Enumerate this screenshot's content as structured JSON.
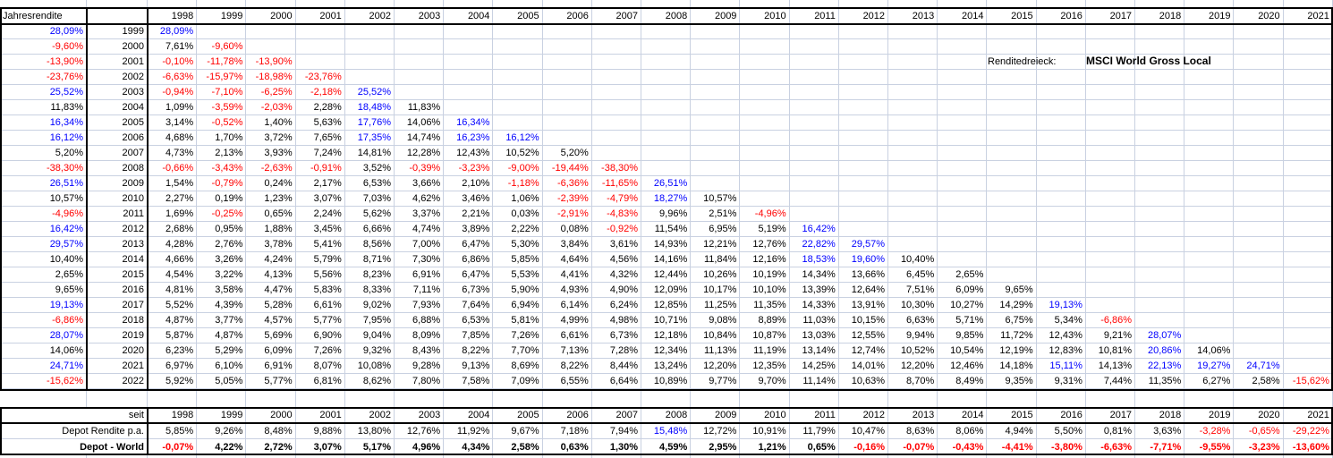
{
  "meta": {
    "colors": {
      "grid_line": "#c9d1e1",
      "negative_text": "#ff0000",
      "high_text": "#0000ff",
      "text": "#000000",
      "background": "#ffffff",
      "border": "#000000"
    },
    "value_color_rules": {
      "blue_min_percent": 15,
      "red_below_percent": 0
    }
  },
  "title": {
    "label": "Renditedreieck:",
    "value": "MSCI World Gross Local"
  },
  "header": {
    "corner_label": "Jahresrendite",
    "years": [
      "1998",
      "1999",
      "2000",
      "2001",
      "2002",
      "2003",
      "2004",
      "2005",
      "2006",
      "2007",
      "2008",
      "2009",
      "2010",
      "2011",
      "2012",
      "2013",
      "2014",
      "2015",
      "2016",
      "2017",
      "2018",
      "2019",
      "2020",
      "2021"
    ]
  },
  "triangle": {
    "rows": [
      {
        "year": "1999",
        "annual": "28,09%",
        "values": [
          "28,09%"
        ]
      },
      {
        "year": "2000",
        "annual": "-9,60%",
        "values": [
          "7,61%",
          "-9,60%"
        ]
      },
      {
        "year": "2001",
        "annual": "-13,90%",
        "values": [
          "-0,10%",
          "-11,78%",
          "-13,90%"
        ]
      },
      {
        "year": "2002",
        "annual": "-23,76%",
        "values": [
          "-6,63%",
          "-15,97%",
          "-18,98%",
          "-23,76%"
        ]
      },
      {
        "year": "2003",
        "annual": "25,52%",
        "values": [
          "-0,94%",
          "-7,10%",
          "-6,25%",
          "-2,18%",
          "25,52%"
        ]
      },
      {
        "year": "2004",
        "annual": "11,83%",
        "values": [
          "1,09%",
          "-3,59%",
          "-2,03%",
          "2,28%",
          "18,48%",
          "11,83%"
        ]
      },
      {
        "year": "2005",
        "annual": "16,34%",
        "values": [
          "3,14%",
          "-0,52%",
          "1,40%",
          "5,63%",
          "17,76%",
          "14,06%",
          "16,34%"
        ]
      },
      {
        "year": "2006",
        "annual": "16,12%",
        "values": [
          "4,68%",
          "1,70%",
          "3,72%",
          "7,65%",
          "17,35%",
          "14,74%",
          "16,23%",
          "16,12%"
        ]
      },
      {
        "year": "2007",
        "annual": "5,20%",
        "values": [
          "4,73%",
          "2,13%",
          "3,93%",
          "7,24%",
          "14,81%",
          "12,28%",
          "12,43%",
          "10,52%",
          "5,20%"
        ]
      },
      {
        "year": "2008",
        "annual": "-38,30%",
        "values": [
          "-0,66%",
          "-3,43%",
          "-2,63%",
          "-0,91%",
          "3,52%",
          "-0,39%",
          "-3,23%",
          "-9,00%",
          "-19,44%",
          "-38,30%"
        ]
      },
      {
        "year": "2009",
        "annual": "26,51%",
        "values": [
          "1,54%",
          "-0,79%",
          "0,24%",
          "2,17%",
          "6,53%",
          "3,66%",
          "2,10%",
          "-1,18%",
          "-6,36%",
          "-11,65%",
          "26,51%"
        ]
      },
      {
        "year": "2010",
        "annual": "10,57%",
        "values": [
          "2,27%",
          "0,19%",
          "1,23%",
          "3,07%",
          "7,03%",
          "4,62%",
          "3,46%",
          "1,06%",
          "-2,39%",
          "-4,79%",
          "18,27%",
          "10,57%"
        ]
      },
      {
        "year": "2011",
        "annual": "-4,96%",
        "values": [
          "1,69%",
          "-0,25%",
          "0,65%",
          "2,24%",
          "5,62%",
          "3,37%",
          "2,21%",
          "0,03%",
          "-2,91%",
          "-4,83%",
          "9,96%",
          "2,51%",
          "-4,96%"
        ]
      },
      {
        "year": "2012",
        "annual": "16,42%",
        "values": [
          "2,68%",
          "0,95%",
          "1,88%",
          "3,45%",
          "6,66%",
          "4,74%",
          "3,89%",
          "2,22%",
          "0,08%",
          "-0,92%",
          "11,54%",
          "6,95%",
          "5,19%",
          "16,42%"
        ]
      },
      {
        "year": "2013",
        "annual": "29,57%",
        "values": [
          "4,28%",
          "2,76%",
          "3,78%",
          "5,41%",
          "8,56%",
          "7,00%",
          "6,47%",
          "5,30%",
          "3,84%",
          "3,61%",
          "14,93%",
          "12,21%",
          "12,76%",
          "22,82%",
          "29,57%"
        ]
      },
      {
        "year": "2014",
        "annual": "10,40%",
        "values": [
          "4,66%",
          "3,26%",
          "4,24%",
          "5,79%",
          "8,71%",
          "7,30%",
          "6,86%",
          "5,85%",
          "4,64%",
          "4,56%",
          "14,16%",
          "11,84%",
          "12,16%",
          "18,53%",
          "19,60%",
          "10,40%"
        ]
      },
      {
        "year": "2015",
        "annual": "2,65%",
        "values": [
          "4,54%",
          "3,22%",
          "4,13%",
          "5,56%",
          "8,23%",
          "6,91%",
          "6,47%",
          "5,53%",
          "4,41%",
          "4,32%",
          "12,44%",
          "10,26%",
          "10,19%",
          "14,34%",
          "13,66%",
          "6,45%",
          "2,65%"
        ]
      },
      {
        "year": "2016",
        "annual": "9,65%",
        "values": [
          "4,81%",
          "3,58%",
          "4,47%",
          "5,83%",
          "8,33%",
          "7,11%",
          "6,73%",
          "5,90%",
          "4,93%",
          "4,90%",
          "12,09%",
          "10,17%",
          "10,10%",
          "13,39%",
          "12,64%",
          "7,51%",
          "6,09%",
          "9,65%"
        ]
      },
      {
        "year": "2017",
        "annual": "19,13%",
        "values": [
          "5,52%",
          "4,39%",
          "5,28%",
          "6,61%",
          "9,02%",
          "7,93%",
          "7,64%",
          "6,94%",
          "6,14%",
          "6,24%",
          "12,85%",
          "11,25%",
          "11,35%",
          "14,33%",
          "13,91%",
          "10,30%",
          "10,27%",
          "14,29%",
          "19,13%"
        ]
      },
      {
        "year": "2018",
        "annual": "-6,86%",
        "values": [
          "4,87%",
          "3,77%",
          "4,57%",
          "5,77%",
          "7,95%",
          "6,88%",
          "6,53%",
          "5,81%",
          "4,99%",
          "4,98%",
          "10,71%",
          "9,08%",
          "8,89%",
          "11,03%",
          "10,15%",
          "6,63%",
          "5,71%",
          "6,75%",
          "5,34%",
          "-6,86%"
        ]
      },
      {
        "year": "2019",
        "annual": "28,07%",
        "values": [
          "5,87%",
          "4,87%",
          "5,69%",
          "6,90%",
          "9,04%",
          "8,09%",
          "7,85%",
          "7,26%",
          "6,61%",
          "6,73%",
          "12,18%",
          "10,84%",
          "10,87%",
          "13,03%",
          "12,55%",
          "9,94%",
          "9,85%",
          "11,72%",
          "12,43%",
          "9,21%",
          "28,07%"
        ]
      },
      {
        "year": "2020",
        "annual": "14,06%",
        "values": [
          "6,23%",
          "5,29%",
          "6,09%",
          "7,26%",
          "9,32%",
          "8,43%",
          "8,22%",
          "7,70%",
          "7,13%",
          "7,28%",
          "12,34%",
          "11,13%",
          "11,19%",
          "13,14%",
          "12,74%",
          "10,52%",
          "10,54%",
          "12,19%",
          "12,83%",
          "10,81%",
          "20,86%",
          "14,06%"
        ]
      },
      {
        "year": "2021",
        "annual": "24,71%",
        "values": [
          "6,97%",
          "6,10%",
          "6,91%",
          "8,07%",
          "10,08%",
          "9,28%",
          "9,13%",
          "8,69%",
          "8,22%",
          "8,44%",
          "13,24%",
          "12,20%",
          "12,35%",
          "14,25%",
          "14,01%",
          "12,20%",
          "12,46%",
          "14,18%",
          "15,11%",
          "14,13%",
          "22,13%",
          "19,27%",
          "24,71%"
        ]
      },
      {
        "year": "2022",
        "annual": "-15,62%",
        "values": [
          "5,92%",
          "5,05%",
          "5,77%",
          "6,81%",
          "8,62%",
          "7,80%",
          "7,58%",
          "7,09%",
          "6,55%",
          "6,64%",
          "10,89%",
          "9,77%",
          "9,70%",
          "11,14%",
          "10,63%",
          "8,70%",
          "8,49%",
          "9,35%",
          "9,31%",
          "7,44%",
          "11,35%",
          "6,27%",
          "2,58%",
          "-15,62%"
        ]
      }
    ]
  },
  "bottom": {
    "since_label": "seit",
    "years": [
      "1998",
      "1999",
      "2000",
      "2001",
      "2002",
      "2003",
      "2004",
      "2005",
      "2006",
      "2007",
      "2008",
      "2009",
      "2010",
      "2011",
      "2012",
      "2013",
      "2014",
      "2015",
      "2016",
      "2017",
      "2018",
      "2019",
      "2020",
      "2021"
    ],
    "rows": [
      {
        "label": "Depot Rendite p.a.",
        "bold": false,
        "values": [
          "5,85%",
          "9,26%",
          "8,48%",
          "9,88%",
          "13,80%",
          "12,76%",
          "11,92%",
          "9,67%",
          "7,18%",
          "7,94%",
          "15,48%",
          "12,72%",
          "10,91%",
          "11,79%",
          "10,47%",
          "8,63%",
          "8,06%",
          "4,94%",
          "5,50%",
          "0,81%",
          "3,63%",
          "-3,28%",
          "-0,65%",
          "-29,22%"
        ]
      },
      {
        "label": "Depot - World",
        "bold": true,
        "values": [
          "-0,07%",
          "4,22%",
          "2,72%",
          "3,07%",
          "5,17%",
          "4,96%",
          "4,34%",
          "2,58%",
          "0,63%",
          "1,30%",
          "4,59%",
          "2,95%",
          "1,21%",
          "0,65%",
          "-0,16%",
          "-0,07%",
          "-0,43%",
          "-4,41%",
          "-3,80%",
          "-6,63%",
          "-7,71%",
          "-9,55%",
          "-3,23%",
          "-13,60%"
        ]
      }
    ]
  }
}
